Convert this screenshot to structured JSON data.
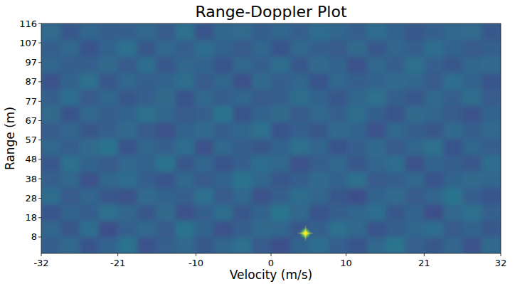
{
  "chart_data": {
    "type": "heatmap",
    "title": "Range-Doppler Plot",
    "x_label": "Velocity (m/s)",
    "y_label": "Range (m)",
    "xlim": [
      -32,
      32
    ],
    "ylim": [
      0,
      116.4
    ],
    "xticks": [
      -32,
      {
        "value": -21.33,
        "label": "-21"
      },
      {
        "value": -10.45,
        "label": "-10"
      },
      0,
      {
        "value": 10.45,
        "label": "10"
      },
      {
        "value": 21.33,
        "label": "21"
      },
      32
    ],
    "yticks": [
      {
        "value": 8.3,
        "label": "8"
      },
      {
        "value": 18.1,
        "label": "18"
      },
      {
        "value": 27.9,
        "label": "28"
      },
      {
        "value": 37.8,
        "label": "38"
      },
      {
        "value": 47.6,
        "label": "48"
      },
      {
        "value": 57.4,
        "label": "57"
      },
      {
        "value": 67.2,
        "label": "67"
      },
      77,
      {
        "value": 86.9,
        "label": "87"
      },
      {
        "value": 96.7,
        "label": "97"
      },
      {
        "value": 106.6,
        "label": "107"
      },
      {
        "value": 116.4,
        "label": "116"
      }
    ],
    "zlim": [
      0.05,
      1
    ],
    "cells": [
      [
        0.33,
        0.38,
        0.3,
        0.35,
        0.41,
        0.29,
        0.34,
        0.37,
        0.31,
        0.36,
        0.4,
        0.32,
        0.28,
        0.35,
        0.39,
        0.33,
        0.3,
        0.37,
        0.42,
        0.34,
        0.31,
        0.36,
        0.29,
        0.38
      ],
      [
        0.36,
        0.31,
        0.39,
        0.28,
        0.34,
        0.37,
        0.32,
        0.41,
        0.35,
        0.29,
        0.33,
        0.38,
        0.36,
        0.31,
        0.34,
        0.4,
        0.37,
        0.3,
        0.33,
        0.36,
        0.39,
        0.32,
        0.35,
        0.31
      ],
      [
        0.3,
        0.35,
        0.33,
        0.4,
        0.36,
        0.31,
        0.38,
        0.29,
        0.34,
        0.39,
        0.31,
        0.35,
        0.42,
        0.37,
        0.3,
        0.33,
        0.36,
        0.39,
        0.31,
        0.35,
        0.28,
        0.37,
        0.4,
        0.34
      ],
      [
        0.39,
        0.32,
        0.36,
        0.31,
        0.29,
        0.38,
        0.35,
        0.33,
        0.4,
        0.32,
        0.37,
        0.29,
        0.34,
        0.39,
        0.36,
        0.31,
        0.28,
        0.35,
        0.38,
        0.32,
        0.36,
        0.41,
        0.33,
        0.3
      ],
      [
        0.34,
        0.37,
        0.29,
        0.36,
        0.39,
        0.33,
        0.3,
        0.37,
        0.32,
        0.35,
        0.41,
        0.36,
        0.31,
        0.33,
        0.38,
        0.35,
        0.4,
        0.32,
        0.34,
        0.37,
        0.3,
        0.35,
        0.38,
        0.36
      ],
      [
        0.31,
        0.4,
        0.35,
        0.32,
        0.37,
        0.35,
        0.41,
        0.31,
        0.36,
        0.3,
        0.34,
        0.39,
        0.37,
        0.29,
        0.33,
        0.37,
        0.31,
        0.36,
        0.39,
        0.29,
        0.35,
        0.33,
        0.31,
        0.39
      ],
      [
        0.37,
        0.33,
        0.38,
        0.41,
        0.3,
        0.36,
        0.34,
        0.39,
        0.29,
        0.37,
        0.33,
        0.31,
        0.35,
        0.4,
        0.36,
        0.3,
        0.34,
        0.38,
        0.32,
        0.36,
        0.4,
        0.3,
        0.36,
        0.33
      ],
      [
        0.32,
        0.36,
        0.31,
        0.34,
        0.38,
        0.32,
        0.29,
        0.35,
        0.38,
        0.33,
        0.36,
        0.4,
        0.3,
        0.34,
        0.31,
        0.38,
        0.35,
        0.29,
        0.37,
        0.33,
        0.31,
        0.38,
        0.34,
        0.37
      ],
      [
        0.38,
        0.3,
        0.37,
        0.33,
        0.35,
        0.4,
        0.36,
        0.32,
        0.34,
        0.41,
        0.3,
        0.35,
        0.38,
        0.32,
        0.37,
        0.34,
        0.39,
        0.33,
        0.3,
        0.38,
        0.36,
        0.32,
        0.29,
        0.35
      ],
      [
        0.34,
        0.39,
        0.32,
        0.36,
        0.31,
        0.34,
        0.38,
        0.3,
        0.37,
        0.33,
        0.36,
        0.32,
        0.34,
        0.39,
        0.35,
        0.31,
        0.36,
        0.4,
        0.34,
        0.31,
        0.37,
        0.34,
        0.39,
        0.32
      ],
      [
        0.29,
        0.35,
        0.4,
        0.31,
        0.37,
        0.33,
        0.35,
        0.39,
        0.32,
        0.36,
        0.29,
        0.38,
        0.33,
        0.36,
        0.3,
        0.37,
        0.33,
        0.35,
        0.38,
        0.36,
        0.32,
        0.39,
        0.35,
        0.3
      ],
      [
        0.36,
        0.33,
        0.34,
        0.38,
        0.32,
        0.39,
        0.31,
        0.36,
        0.35,
        0.3,
        0.37,
        0.34,
        0.39,
        0.31,
        0.38,
        0.35,
        0.29,
        0.37,
        0.33,
        0.4,
        0.34,
        0.31,
        0.36,
        0.38
      ],
      [
        0.33,
        0.37,
        0.3,
        0.35,
        0.4,
        0.31,
        0.37,
        0.33,
        0.39,
        0.35,
        0.32,
        0.36,
        0.3,
        0.37,
        0.34,
        0.32,
        0.38,
        0.31,
        0.36,
        0.33,
        0.39,
        0.35,
        0.32,
        0.34
      ],
      [
        0.38,
        0.31,
        0.36,
        0.33,
        0.34,
        0.37,
        0.32,
        0.4,
        0.3,
        0.36,
        0.38,
        0.33,
        0.36,
        0.34,
        0.39,
        0.36,
        0.33,
        0.39,
        0.35,
        0.31,
        0.34,
        0.37,
        0.38,
        0.31
      ]
    ],
    "targets": [
      {
        "velocity": 4.8,
        "range": 10.2,
        "intensity": 1
      }
    ]
  }
}
